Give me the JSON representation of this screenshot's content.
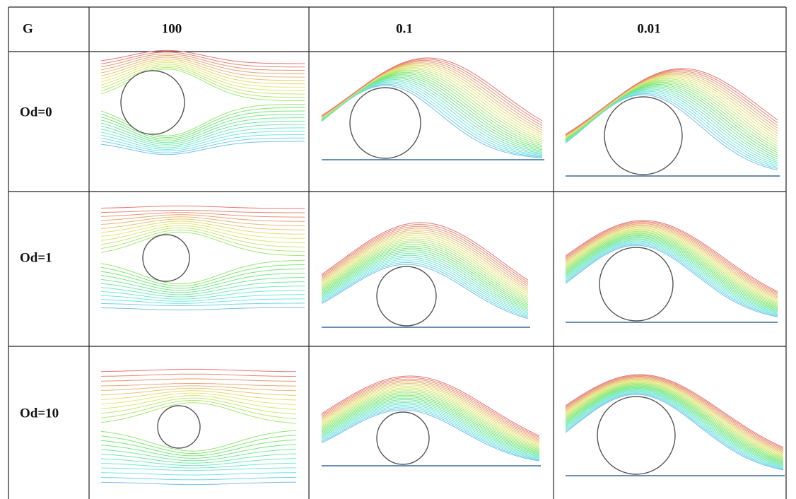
{
  "table": {
    "header": [
      "G",
      "100",
      "0.1",
      "0.01"
    ],
    "row_labels": [
      "Od=0",
      "Od=1",
      "Od=10"
    ]
  }
}
